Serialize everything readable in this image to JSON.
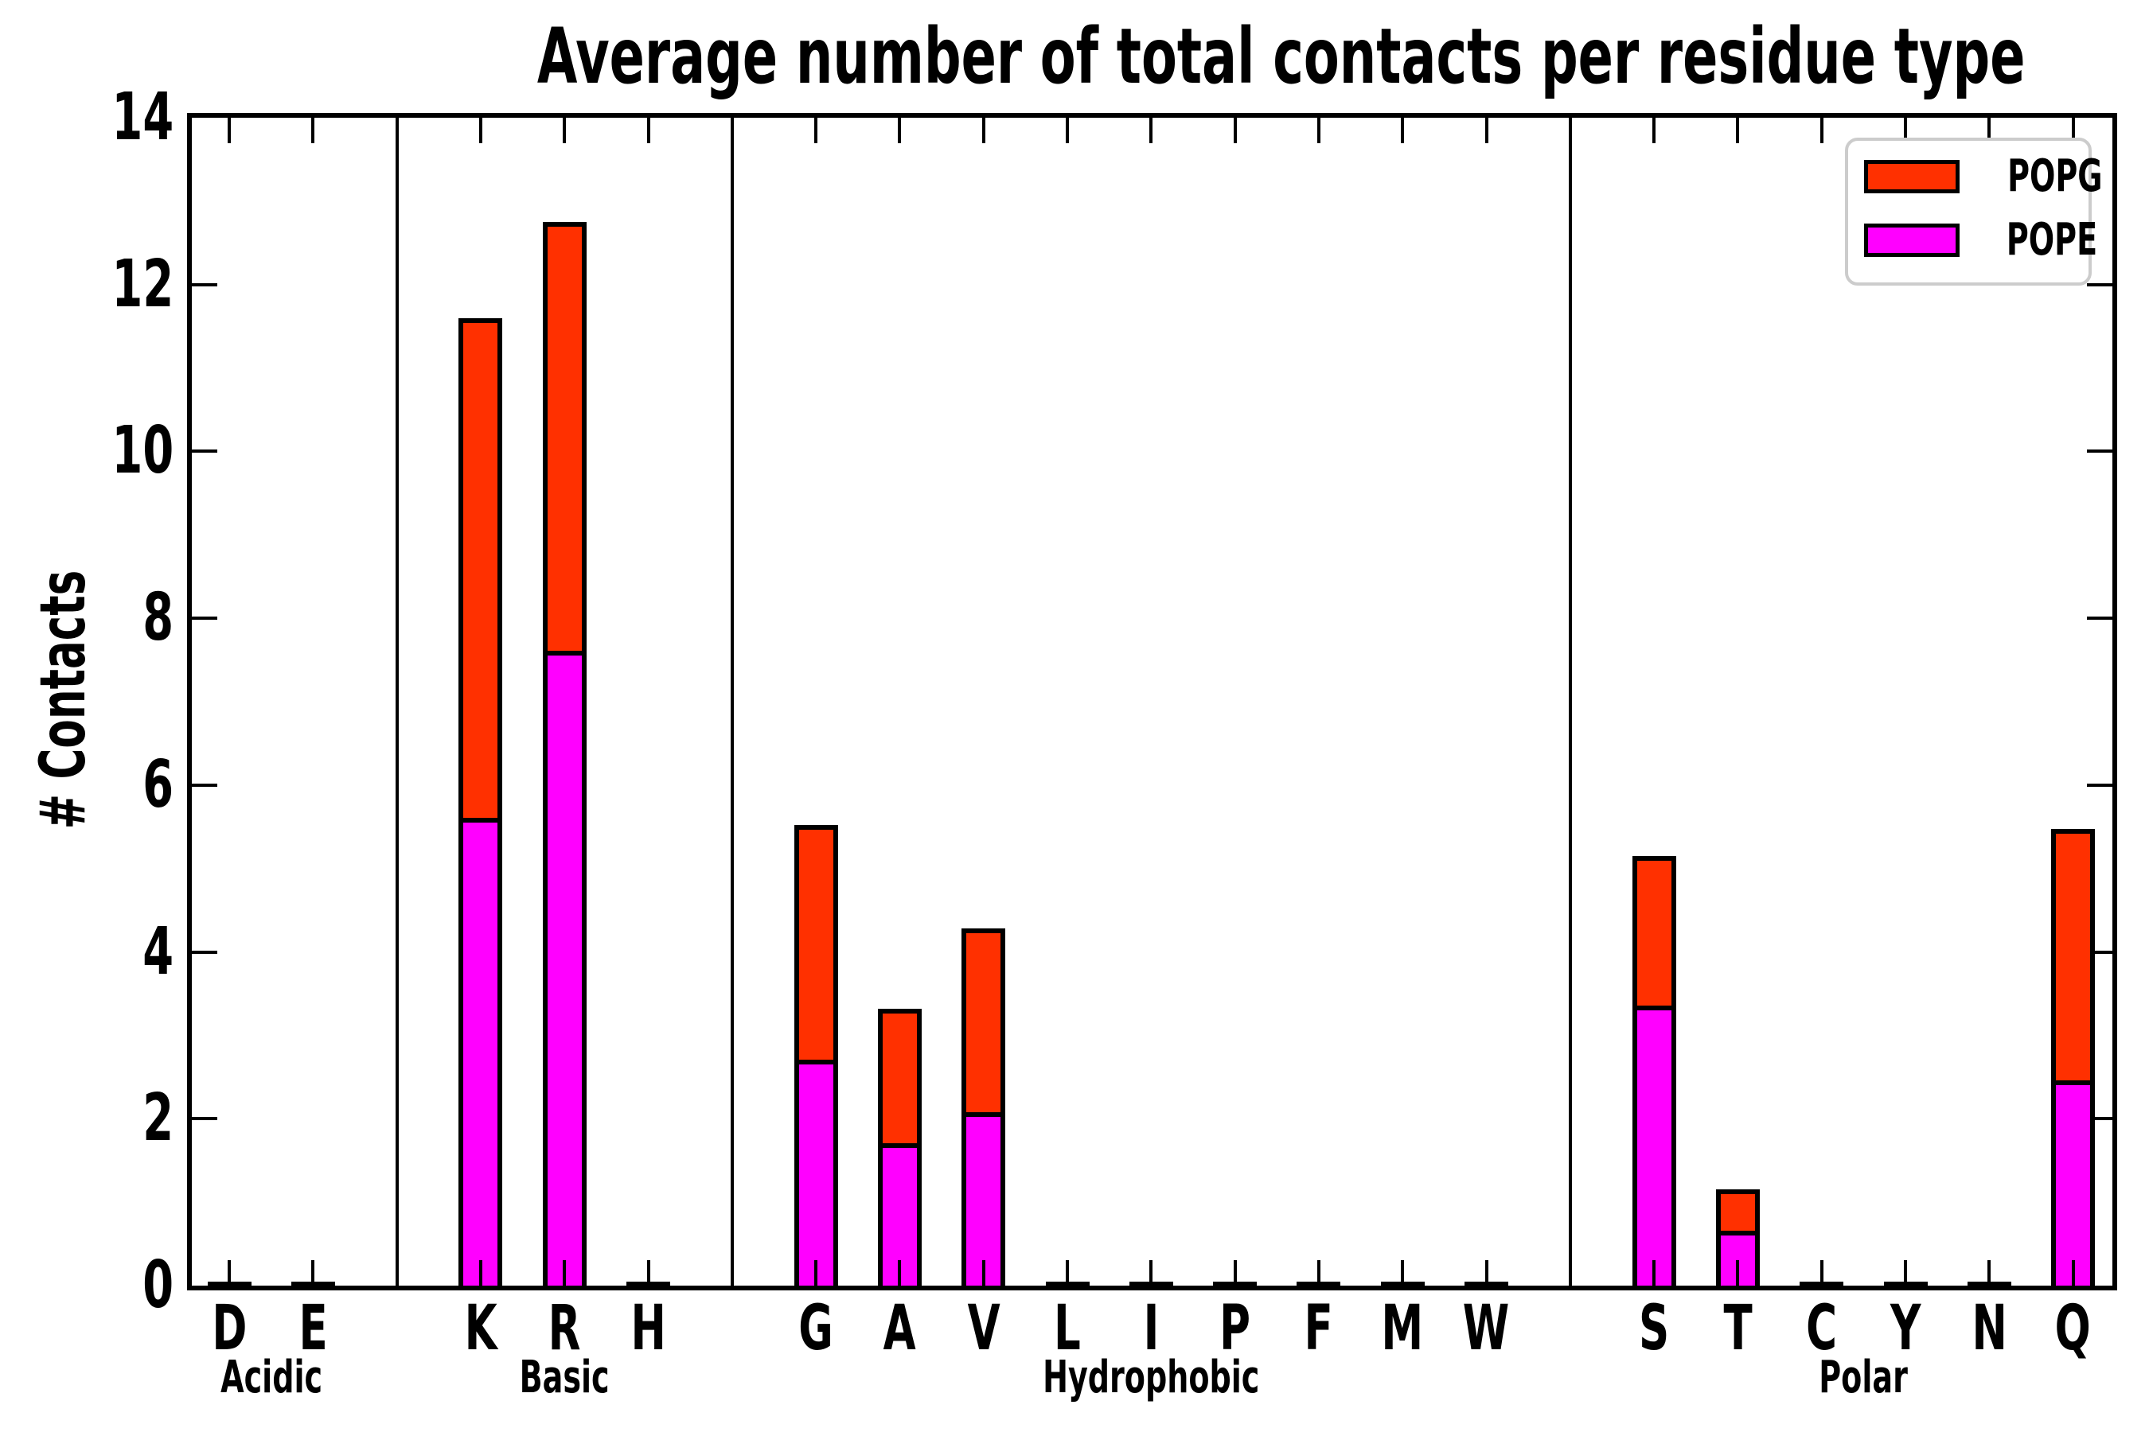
{
  "chart_data": {
    "type": "bar",
    "stacked": true,
    "title": "Average number of total contacts per residue type",
    "ylabel": "# Contacts",
    "xlabel": "",
    "ylim": [
      0,
      14
    ],
    "yticks": [
      0,
      2,
      4,
      6,
      8,
      10,
      12,
      14
    ],
    "grid": false,
    "legend_position": "top-right",
    "legend": [
      {
        "label": "POPG",
        "color": "#ff3000"
      },
      {
        "label": "POPE",
        "color": "#ff00ff"
      }
    ],
    "groups": [
      {
        "label": "Acidic",
        "categories": [
          "D",
          "E"
        ]
      },
      {
        "label": "Basic",
        "categories": [
          "K",
          "R",
          "H"
        ]
      },
      {
        "label": "Hydrophobic",
        "categories": [
          "G",
          "A",
          "V",
          "L",
          "I",
          "P",
          "F",
          "M",
          "W"
        ]
      },
      {
        "label": "Polar",
        "categories": [
          "S",
          "T",
          "C",
          "Y",
          "N",
          "Q"
        ]
      }
    ],
    "categories": [
      "D",
      "E",
      "K",
      "R",
      "H",
      "G",
      "A",
      "V",
      "L",
      "I",
      "P",
      "F",
      "M",
      "W",
      "S",
      "T",
      "C",
      "Y",
      "N",
      "Q"
    ],
    "series": [
      {
        "name": "POPE",
        "color": "#ff00ff",
        "values": [
          0.02,
          0.02,
          5.55,
          7.55,
          0.02,
          2.65,
          1.65,
          2.02,
          0.02,
          0.02,
          0.02,
          0.02,
          0.02,
          0.02,
          3.3,
          0.6,
          0.02,
          0.02,
          0.02,
          2.4
        ]
      },
      {
        "name": "POPG",
        "color": "#ff3000",
        "values": [
          0.02,
          0.02,
          6.05,
          5.2,
          0.02,
          2.87,
          1.67,
          2.26,
          0.02,
          0.02,
          0.02,
          0.02,
          0.02,
          0.02,
          1.85,
          0.55,
          0.02,
          0.02,
          0.02,
          3.07
        ]
      }
    ]
  }
}
